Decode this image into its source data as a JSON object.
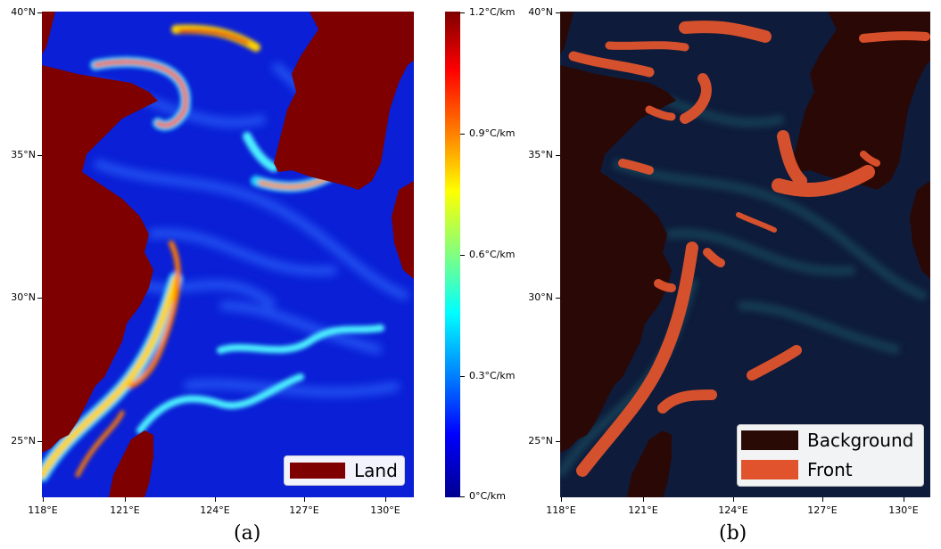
{
  "panel_a": {
    "caption": "(a)",
    "lat_labels": [
      "40°N",
      "35°N",
      "30°N",
      "25°N"
    ],
    "lon_labels": [
      "118°E",
      "121°E",
      "124°E",
      "127°E",
      "130°E"
    ],
    "legend": {
      "label": "Land",
      "color": "#7f0000"
    }
  },
  "colorbar": {
    "labels": [
      "1.2°C/km",
      "0.9°C/km",
      "0.6°C/km",
      "0.3°C/km",
      "0°C/km"
    ],
    "colormap": "jet"
  },
  "panel_b": {
    "caption": "(b)",
    "lat_labels": [
      "40°N",
      "35°N",
      "30°N",
      "25°N"
    ],
    "lon_labels": [
      "118°E",
      "121°E",
      "124°E",
      "127°E",
      "130°E"
    ],
    "legend": [
      {
        "label": "Background",
        "color": "#2a0a05"
      },
      {
        "label": "Front",
        "color": "#e0532c"
      }
    ]
  },
  "colors": {
    "land": "#7f0000",
    "ocean_low": "#00008f",
    "front": "#e0532c",
    "background_dark": "#1a0604"
  }
}
